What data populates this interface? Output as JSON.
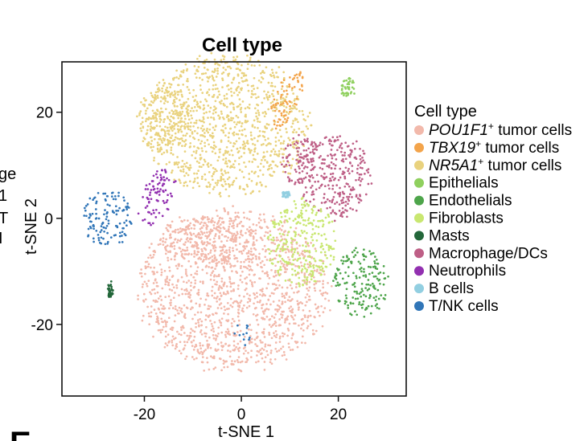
{
  "chart_data": {
    "type": "scatter",
    "title": "Cell type",
    "xlabel": "t-SNE 1",
    "ylabel": "t-SNE 2",
    "xlim": [
      -37,
      34
    ],
    "ylim": [
      -33.5,
      29.5
    ],
    "xticks": [
      {
        "value": -20,
        "label": "-20"
      },
      {
        "value": 0,
        "label": "0"
      },
      {
        "value": 20,
        "label": "20"
      }
    ],
    "yticks": [
      {
        "value": -20,
        "label": "-20"
      },
      {
        "value": 0,
        "label": "0"
      },
      {
        "value": 20,
        "label": "20"
      }
    ],
    "grid": false,
    "legend": {
      "title": "Cell type",
      "placement": "right",
      "entries": [
        {
          "name": "POU1F1",
          "sup": "+",
          "suffix": " tumor cells",
          "italic": true,
          "color": "#f2b9ab"
        },
        {
          "name": "TBX19",
          "sup": "+",
          "suffix": " tumor cells",
          "italic": true,
          "color": "#f3a44b"
        },
        {
          "name": "NR5A1",
          "sup": "+",
          "suffix": " tumor cells",
          "italic": true,
          "color": "#e9d27e"
        },
        {
          "name": "Epithelials",
          "sup": "",
          "suffix": "",
          "italic": false,
          "color": "#8fd05e"
        },
        {
          "name": "Endothelials",
          "sup": "",
          "suffix": "",
          "italic": false,
          "color": "#4ea54b"
        },
        {
          "name": "Fibroblasts",
          "sup": "",
          "suffix": "",
          "italic": false,
          "color": "#c9e771"
        },
        {
          "name": "Masts",
          "sup": "",
          "suffix": "",
          "italic": false,
          "color": "#23673a"
        },
        {
          "name": "Macrophage/DCs",
          "sup": "",
          "suffix": "",
          "italic": false,
          "color": "#be5f86"
        },
        {
          "name": "Neutrophils",
          "sup": "",
          "suffix": "",
          "italic": false,
          "color": "#9230b0"
        },
        {
          "name": "B cells",
          "sup": "",
          "suffix": "",
          "italic": false,
          "color": "#92cfe1"
        },
        {
          "name": "T/NK cells",
          "sup": "",
          "suffix": "",
          "italic": false,
          "color": "#3176b8"
        }
      ]
    },
    "clusters": [
      {
        "series": "POU1F1",
        "cx": -1.5,
        "cy": -13.5,
        "rx": 21,
        "ry": 16,
        "shape": "round"
      },
      {
        "series": "POU1F1",
        "cx": -7,
        "cy": -4,
        "rx": 11,
        "ry": 5,
        "shape": "round"
      },
      {
        "series": "NR5A1",
        "cx": -3,
        "cy": 17.5,
        "rx": 18,
        "ry": 14,
        "shape": "round"
      },
      {
        "series": "NR5A1",
        "cx": -16,
        "cy": 19,
        "rx": 6,
        "ry": 7,
        "shape": "round"
      },
      {
        "series": "TBX19",
        "cx": 9.5,
        "cy": 22.5,
        "rx": 2.8,
        "ry": 6.5,
        "shape": "tilted"
      },
      {
        "series": "Epithelials",
        "cx": 22,
        "cy": 24.5,
        "rx": 1.6,
        "ry": 2.2,
        "shape": "round"
      },
      {
        "series": "Macrophage/DCs",
        "cx": 19,
        "cy": 8,
        "rx": 8,
        "ry": 8.5,
        "shape": "round"
      },
      {
        "series": "Macrophage/DCs",
        "cx": 12,
        "cy": 11,
        "rx": 4,
        "ry": 5,
        "shape": "round"
      },
      {
        "series": "Fibroblasts",
        "cx": 12.5,
        "cy": -4.5,
        "rx": 7.5,
        "ry": 9,
        "shape": "round"
      },
      {
        "series": "Endothelials",
        "cx": 24.5,
        "cy": -12,
        "rx": 6,
        "ry": 7,
        "shape": "round"
      },
      {
        "series": "Neutrophils",
        "cx": -17.5,
        "cy": 4,
        "rx": 3.5,
        "ry": 6,
        "shape": "tilted"
      },
      {
        "series": "T/NK cells",
        "cx": -27.5,
        "cy": 0,
        "rx": 5.5,
        "ry": 5.5,
        "shape": "round"
      },
      {
        "series": "Masts",
        "cx": -27,
        "cy": -13.5,
        "rx": 0.6,
        "ry": 1.8,
        "shape": "round"
      },
      {
        "series": "B cells",
        "cx": 9.2,
        "cy": 4.5,
        "rx": 0.9,
        "ry": 0.7,
        "shape": "round"
      },
      {
        "series": "T/NK cells",
        "cx": 0,
        "cy": -22,
        "rx": 2.5,
        "ry": 2.5,
        "shape": "sparse"
      }
    ]
  },
  "left_edge_fragments": [
    "ge",
    "1",
    "T",
    "I"
  ],
  "panel_letter": "E"
}
